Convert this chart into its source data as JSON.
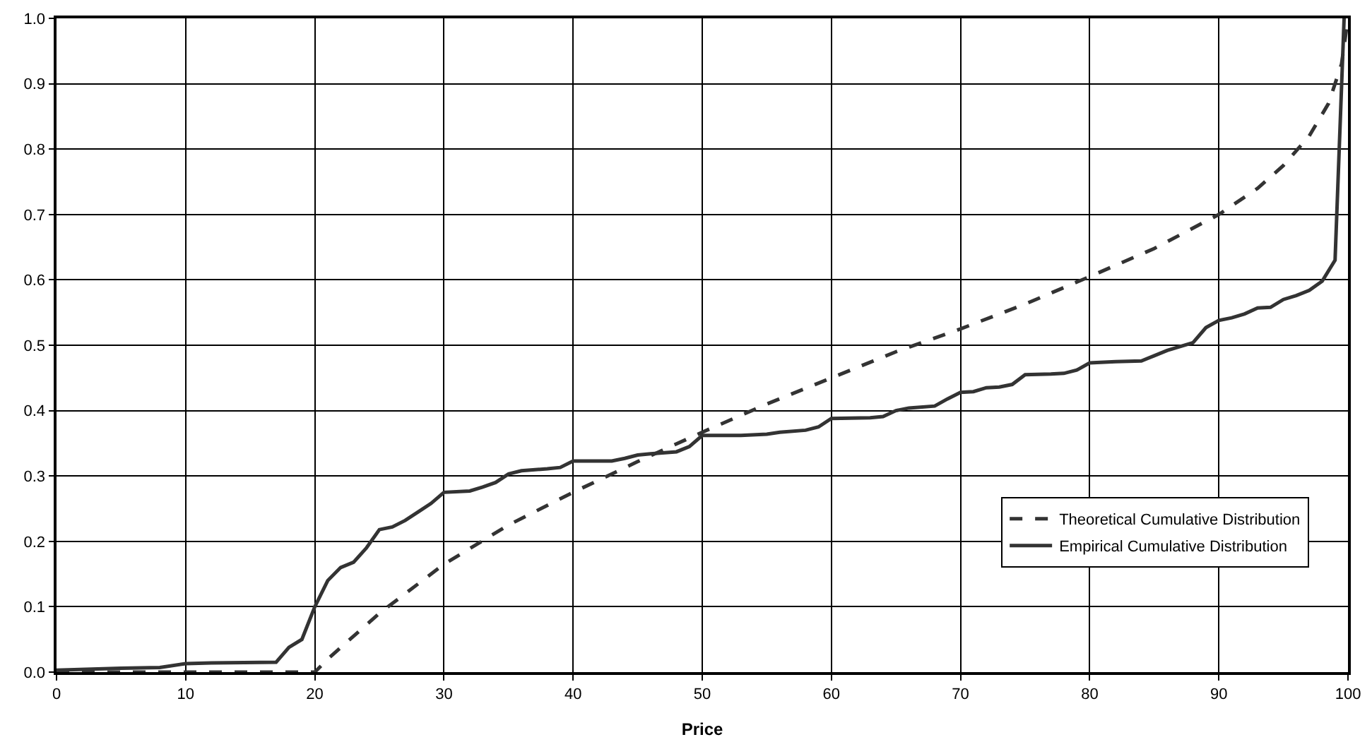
{
  "chart_data": {
    "type": "line",
    "xlabel": "Price",
    "xlim": [
      0,
      100
    ],
    "xticks": [
      0,
      10,
      20,
      30,
      40,
      50,
      60,
      70,
      80,
      90,
      100
    ],
    "ylim": [
      0,
      1
    ],
    "yticks": [
      {
        "value": 0,
        "label": "0.0"
      },
      {
        "value": 0.1,
        "label": "0.1"
      },
      {
        "value": 0.2,
        "label": "0.2"
      },
      {
        "value": 0.3,
        "label": "0.3"
      },
      {
        "value": 0.4,
        "label": "0.4"
      },
      {
        "value": 0.5,
        "label": "0.5"
      },
      {
        "value": 0.6,
        "label": "0.6"
      },
      {
        "value": 0.7,
        "label": "0.7"
      },
      {
        "value": 0.8,
        "label": "0.8"
      },
      {
        "value": 0.9,
        "label": "0.9"
      },
      {
        "value": 1,
        "label": "1.0"
      }
    ],
    "grid": true,
    "legend": "bottom right",
    "marker": "none",
    "series": [
      {
        "name": "Theoretical Cumulative Distribution",
        "color": "#333333",
        "line_style": "dashed",
        "x": [
          0,
          20,
          21,
          25,
          30,
          35,
          40,
          45,
          50,
          55,
          60,
          65,
          70,
          75,
          80,
          85,
          90,
          93,
          95,
          97,
          98.5,
          99.5,
          100
        ],
        "values": [
          0,
          0,
          0.02,
          0.09,
          0.165,
          0.225,
          0.275,
          0.322,
          0.367,
          0.41,
          0.45,
          0.49,
          0.525,
          0.563,
          0.605,
          0.648,
          0.7,
          0.74,
          0.775,
          0.82,
          0.87,
          0.93,
          1.0
        ]
      },
      {
        "name": "Empirical Cumulative Distribution",
        "color": "#333333",
        "line_style": "solid",
        "x": [
          0,
          5,
          8,
          10,
          12,
          17,
          18,
          19,
          20,
          21,
          22,
          23,
          24,
          25,
          26,
          27,
          28,
          29,
          30,
          32,
          33,
          34,
          35,
          36,
          38,
          39,
          40,
          43,
          44,
          45,
          46,
          48,
          49,
          50,
          53,
          55,
          56,
          58,
          59,
          60,
          63,
          64,
          65,
          66,
          68,
          69,
          70,
          71,
          72,
          73,
          74,
          75,
          77,
          78,
          79,
          80,
          82,
          84,
          85,
          86,
          88,
          89,
          90,
          91,
          92,
          93,
          94,
          95,
          96,
          97,
          98,
          99,
          99.7
        ],
        "values": [
          0.003,
          0.006,
          0.007,
          0.013,
          0.014,
          0.015,
          0.038,
          0.05,
          0.1,
          0.14,
          0.16,
          0.168,
          0.19,
          0.218,
          0.222,
          0.232,
          0.245,
          0.258,
          0.275,
          0.277,
          0.283,
          0.29,
          0.303,
          0.308,
          0.311,
          0.313,
          0.323,
          0.323,
          0.327,
          0.332,
          0.334,
          0.337,
          0.345,
          0.362,
          0.362,
          0.364,
          0.367,
          0.37,
          0.375,
          0.388,
          0.389,
          0.391,
          0.4,
          0.404,
          0.407,
          0.418,
          0.428,
          0.429,
          0.435,
          0.436,
          0.44,
          0.455,
          0.456,
          0.457,
          0.462,
          0.473,
          0.475,
          0.476,
          0.484,
          0.492,
          0.504,
          0.527,
          0.538,
          0.542,
          0.548,
          0.557,
          0.558,
          0.57,
          0.576,
          0.584,
          0.598,
          0.63,
          1.0
        ]
      }
    ]
  }
}
